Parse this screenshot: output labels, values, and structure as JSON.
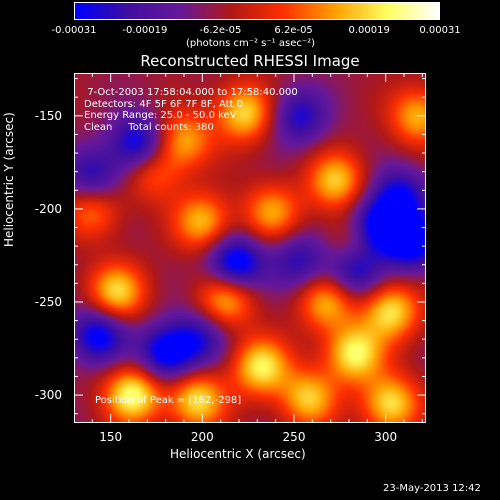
{
  "colorbar": {
    "ticks": [
      "-0.00031",
      "-0.00019",
      "-6.2e-05",
      "6.2e-05",
      "0.00019",
      "0.00031"
    ],
    "tick_values": [
      -0.00031,
      -0.00019,
      -6.2e-05,
      6.2e-05,
      0.00019,
      0.00031
    ],
    "range": [
      -0.00031,
      0.00031
    ],
    "units": "(photons cm⁻² s⁻¹ asec⁻²)",
    "colormap": [
      "#0000ff",
      "#3f0fa0",
      "#66189a",
      "#b01818",
      "#ff3000",
      "#ffa000",
      "#ffff60",
      "#ffffff"
    ]
  },
  "chart_data": {
    "type": "heatmap",
    "title": "Reconstructed RHESSI Image",
    "xlabel": "Heliocentric X (arcsec)",
    "ylabel": "Heliocentric Y (arcsec)",
    "xlim": [
      130,
      322
    ],
    "ylim": [
      -315,
      -127
    ],
    "xticks": [
      "150",
      "200",
      "250",
      "300"
    ],
    "xtick_values": [
      150,
      200,
      250,
      300
    ],
    "yticks": [
      "-150",
      "-200",
      "-250",
      "-300"
    ],
    "ytick_values": [
      -150,
      -200,
      -250,
      -300
    ],
    "annotations": {
      "time_range": "7-Oct-2003 17:58:04.000 to 17:58:40.000",
      "detectors": "Detectors: 4F 5F 6F 7F 8F, Att 0",
      "energy": "Energy Range: 25.0 - 50.0 keV",
      "method": "Clean",
      "counts": "Total counts: 380",
      "peak": "Position of Peak = [162,-298]"
    },
    "sources": [
      {
        "x": 162,
        "y": -300,
        "value": 0.00031
      },
      {
        "x": 197,
        "y": -303,
        "value": 0.00027
      },
      {
        "x": 232,
        "y": -285,
        "value": 0.00028
      },
      {
        "x": 283,
        "y": -278,
        "value": 0.00029
      },
      {
        "x": 303,
        "y": -305,
        "value": 0.00027
      },
      {
        "x": 258,
        "y": -302,
        "value": 0.00024
      },
      {
        "x": 153,
        "y": -245,
        "value": 0.00026
      },
      {
        "x": 213,
        "y": -248,
        "value": 0.00024
      },
      {
        "x": 268,
        "y": -250,
        "value": 0.00022
      },
      {
        "x": 303,
        "y": -255,
        "value": 0.00027
      },
      {
        "x": 200,
        "y": -207,
        "value": 0.00023
      },
      {
        "x": 238,
        "y": -202,
        "value": 0.0002
      },
      {
        "x": 273,
        "y": -185,
        "value": 0.00024
      },
      {
        "x": 318,
        "y": -150,
        "value": 0.00022
      },
      {
        "x": 223,
        "y": -148,
        "value": 0.00026
      },
      {
        "x": 190,
        "y": -163,
        "value": 0.00021
      },
      {
        "x": 140,
        "y": -200,
        "value": 0.00018
      },
      {
        "x": 173,
        "y": -180,
        "value": 0.00016
      },
      {
        "x": 283,
        "y": -218,
        "value": 0.00015
      },
      {
        "x": 218,
        "y": -230,
        "value": -0.00031
      },
      {
        "x": 165,
        "y": -165,
        "value": -0.00026
      },
      {
        "x": 295,
        "y": -210,
        "value": -0.00029
      },
      {
        "x": 315,
        "y": -218,
        "value": -0.00027
      },
      {
        "x": 143,
        "y": -268,
        "value": -0.00026
      },
      {
        "x": 180,
        "y": -278,
        "value": -0.00027
      },
      {
        "x": 283,
        "y": -233,
        "value": -0.00024
      },
      {
        "x": 253,
        "y": -150,
        "value": -0.0002
      },
      {
        "x": 308,
        "y": -193,
        "value": -0.00022
      },
      {
        "x": 253,
        "y": -228,
        "value": -0.00018
      },
      {
        "x": 140,
        "y": -183,
        "value": -0.0002
      },
      {
        "x": 198,
        "y": -270,
        "value": -0.00018
      }
    ]
  },
  "footer": {
    "timestamp": "23-May-2013 12:42"
  }
}
